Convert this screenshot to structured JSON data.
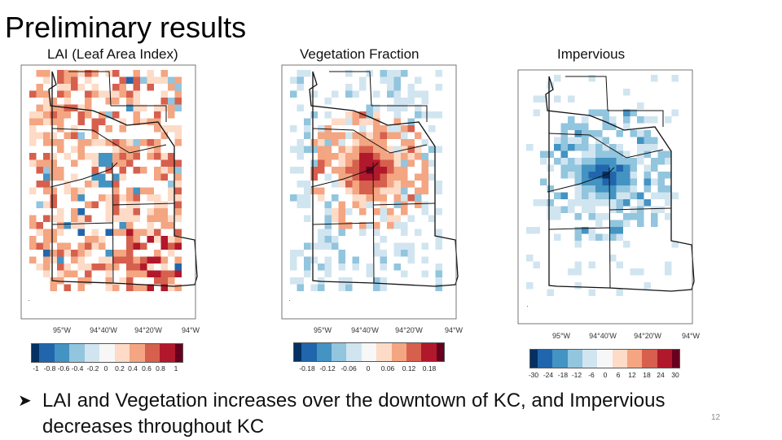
{
  "slide": {
    "title": "Preliminary results",
    "bullet": "LAI and Vegetation increases over the downtown of KC, and Impervious decreases throughout KC",
    "page_number": "12"
  },
  "panels": [
    {
      "label": "LAI  (Leaf Area Index)",
      "lon_ticks": [
        "95°W",
        "94°40'W",
        "94°20'W",
        "94°W"
      ],
      "colorbar_ticks": [
        "-1",
        "-0.8",
        "-0.6",
        "-0.4",
        "-0.2",
        "0",
        "0.2",
        "0.4",
        "0.6",
        "0.8",
        "1"
      ],
      "pattern": "widespread-increase"
    },
    {
      "label": "Vegetation Fraction",
      "lon_ticks": [
        "95°W",
        "94°40'W",
        "94°20'W",
        "94°W"
      ],
      "colorbar_ticks": [
        "-0.18",
        "-0.12",
        "-0.06",
        "0",
        "0.06",
        "0.12",
        "0.18"
      ],
      "pattern": "downtown-increase"
    },
    {
      "label": "Impervious",
      "lon_ticks": [
        "95°W",
        "94°40'W",
        "94°20'W",
        "94°W"
      ],
      "colorbar_ticks": [
        "-30",
        "-24",
        "-18",
        "-12",
        "-6",
        "0",
        "6",
        "12",
        "18",
        "24",
        "30"
      ],
      "pattern": "downtown-decrease"
    }
  ],
  "colormap": [
    "#053061",
    "#2166ac",
    "#4393c3",
    "#92c5de",
    "#d1e5f0",
    "#f7f7f7",
    "#fddbc7",
    "#f4a582",
    "#d6604d",
    "#b2182b",
    "#67001f"
  ]
}
